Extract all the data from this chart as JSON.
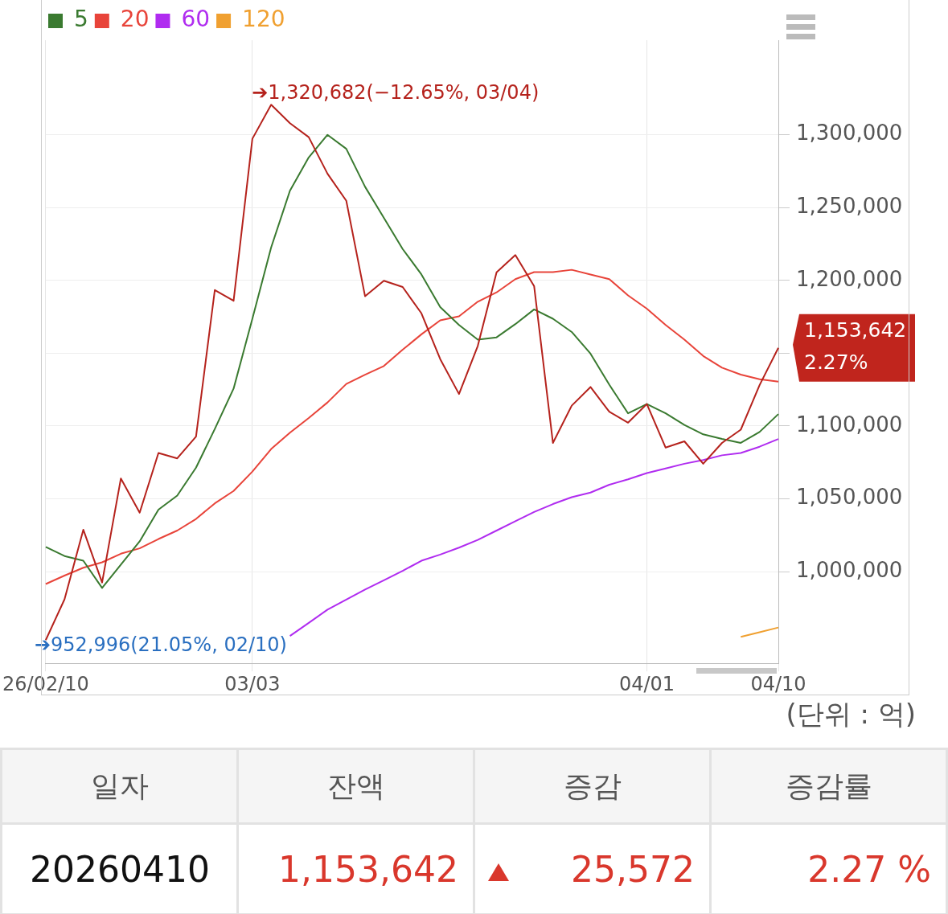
{
  "chart_data": [
    {
      "type": "line",
      "categories": [
        "26/02/10",
        null,
        null,
        null,
        null,
        null,
        null,
        null,
        null,
        null,
        null,
        "03/03",
        null,
        null,
        null,
        null,
        null,
        null,
        null,
        null,
        null,
        null,
        null,
        null,
        null,
        null,
        null,
        null,
        null,
        null,
        null,
        null,
        "04/01",
        null,
        null,
        null,
        null,
        null,
        null,
        "04/10"
      ],
      "series": [
        {
          "color": "#b5221c",
          "values": [
            952996,
            981000,
            1028800,
            992500,
            1064000,
            1040500,
            1081500,
            1077800,
            1092700,
            1193400,
            1186000,
            1297300,
            1320682,
            1308000,
            1298400,
            1273300,
            1254700,
            1189100,
            1199800,
            1195500,
            1177400,
            1146000,
            1122000,
            1155000,
            1205600,
            1217400,
            1196000,
            1088400,
            1114000,
            1126800,
            1109800,
            1102300,
            1115100,
            1085200,
            1089500,
            1074100,
            1088400,
            1097500,
            1128070,
            1153642
          ]
        },
        {
          "name": "5",
          "color": "#3a7a30",
          "values": [
            1017000,
            1010700,
            1007500,
            988800,
            1004800,
            1020800,
            1042600,
            1052200,
            1071400,
            1098000,
            1125700,
            1173700,
            1222700,
            1261600,
            1284500,
            1300000,
            1290400,
            1264300,
            1243000,
            1221600,
            1204100,
            1181700,
            1169400,
            1159300,
            1160900,
            1170000,
            1180100,
            1173700,
            1164600,
            1149700,
            1128400,
            1108700,
            1115100,
            1108700,
            1100700,
            1094300,
            1091100,
            1088400,
            1095900,
            1108200
          ]
        },
        {
          "name": "20",
          "color": "#e8443a",
          "values": [
            991500,
            997300,
            1002700,
            1006400,
            1012300,
            1016000,
            1022400,
            1028200,
            1036200,
            1046900,
            1055400,
            1068700,
            1084200,
            1095400,
            1105500,
            1116200,
            1128900,
            1135300,
            1141200,
            1152400,
            1163000,
            1172600,
            1175300,
            1185400,
            1191800,
            1200900,
            1205700,
            1205700,
            1207300,
            1204100,
            1200900,
            1189700,
            1180600,
            1169400,
            1159300,
            1148100,
            1140100,
            1135300,
            1132100,
            1130500
          ]
        },
        {
          "name": "60",
          "color": "#b02cf0",
          "values": [
            null,
            null,
            null,
            null,
            null,
            null,
            null,
            null,
            null,
            null,
            null,
            null,
            null,
            955800,
            964800,
            973900,
            980800,
            987700,
            994100,
            1000500,
            1007500,
            1011700,
            1016500,
            1021800,
            1028200,
            1034600,
            1041000,
            1046400,
            1051100,
            1054300,
            1059700,
            1063400,
            1067700,
            1070900,
            1074100,
            1076700,
            1079900,
            1081500,
            1085800,
            1091100
          ]
        },
        {
          "name": "120",
          "color": "#f0a030",
          "values": [
            null,
            null,
            null,
            null,
            null,
            null,
            null,
            null,
            null,
            null,
            null,
            null,
            null,
            null,
            null,
            null,
            null,
            null,
            null,
            null,
            null,
            null,
            null,
            null,
            null,
            null,
            null,
            null,
            null,
            null,
            null,
            null,
            null,
            null,
            null,
            null,
            null,
            955200,
            958400,
            961600
          ]
        }
      ],
      "ylim": [
        937000,
        1365000
      ],
      "yticks": [
        {
          "value": 1000000,
          "label": "1,000,000"
        },
        {
          "value": 1050000,
          "label": "1,050,000"
        },
        {
          "value": 1100000,
          "label": "1,100,000"
        },
        {
          "value": 1150000,
          "label": null
        },
        {
          "value": 1200000,
          "label": "1,200,000"
        },
        {
          "value": 1250000,
          "label": "1,250,000"
        },
        {
          "value": 1300000,
          "label": "1,300,000"
        }
      ],
      "grid": true,
      "legend": "top left",
      "marker": "none",
      "line_style": "solid",
      "annotations": [
        "➔1,320,682(−12.65%, 03/04)",
        "➔952,996(21.05%, 02/10)",
        {
          "text": "1,153,642 2.27%",
          "x": "04/10",
          "y": 1153642
        },
        "(단위 : 억)"
      ]
    },
    {
      "type": "other",
      "categories": [
        "일자",
        "잔액",
        "증감",
        "증감률"
      ],
      "annotations": [
        "20260410",
        "1,153,642",
        "25,572",
        "2.27 %"
      ]
    }
  ]
}
